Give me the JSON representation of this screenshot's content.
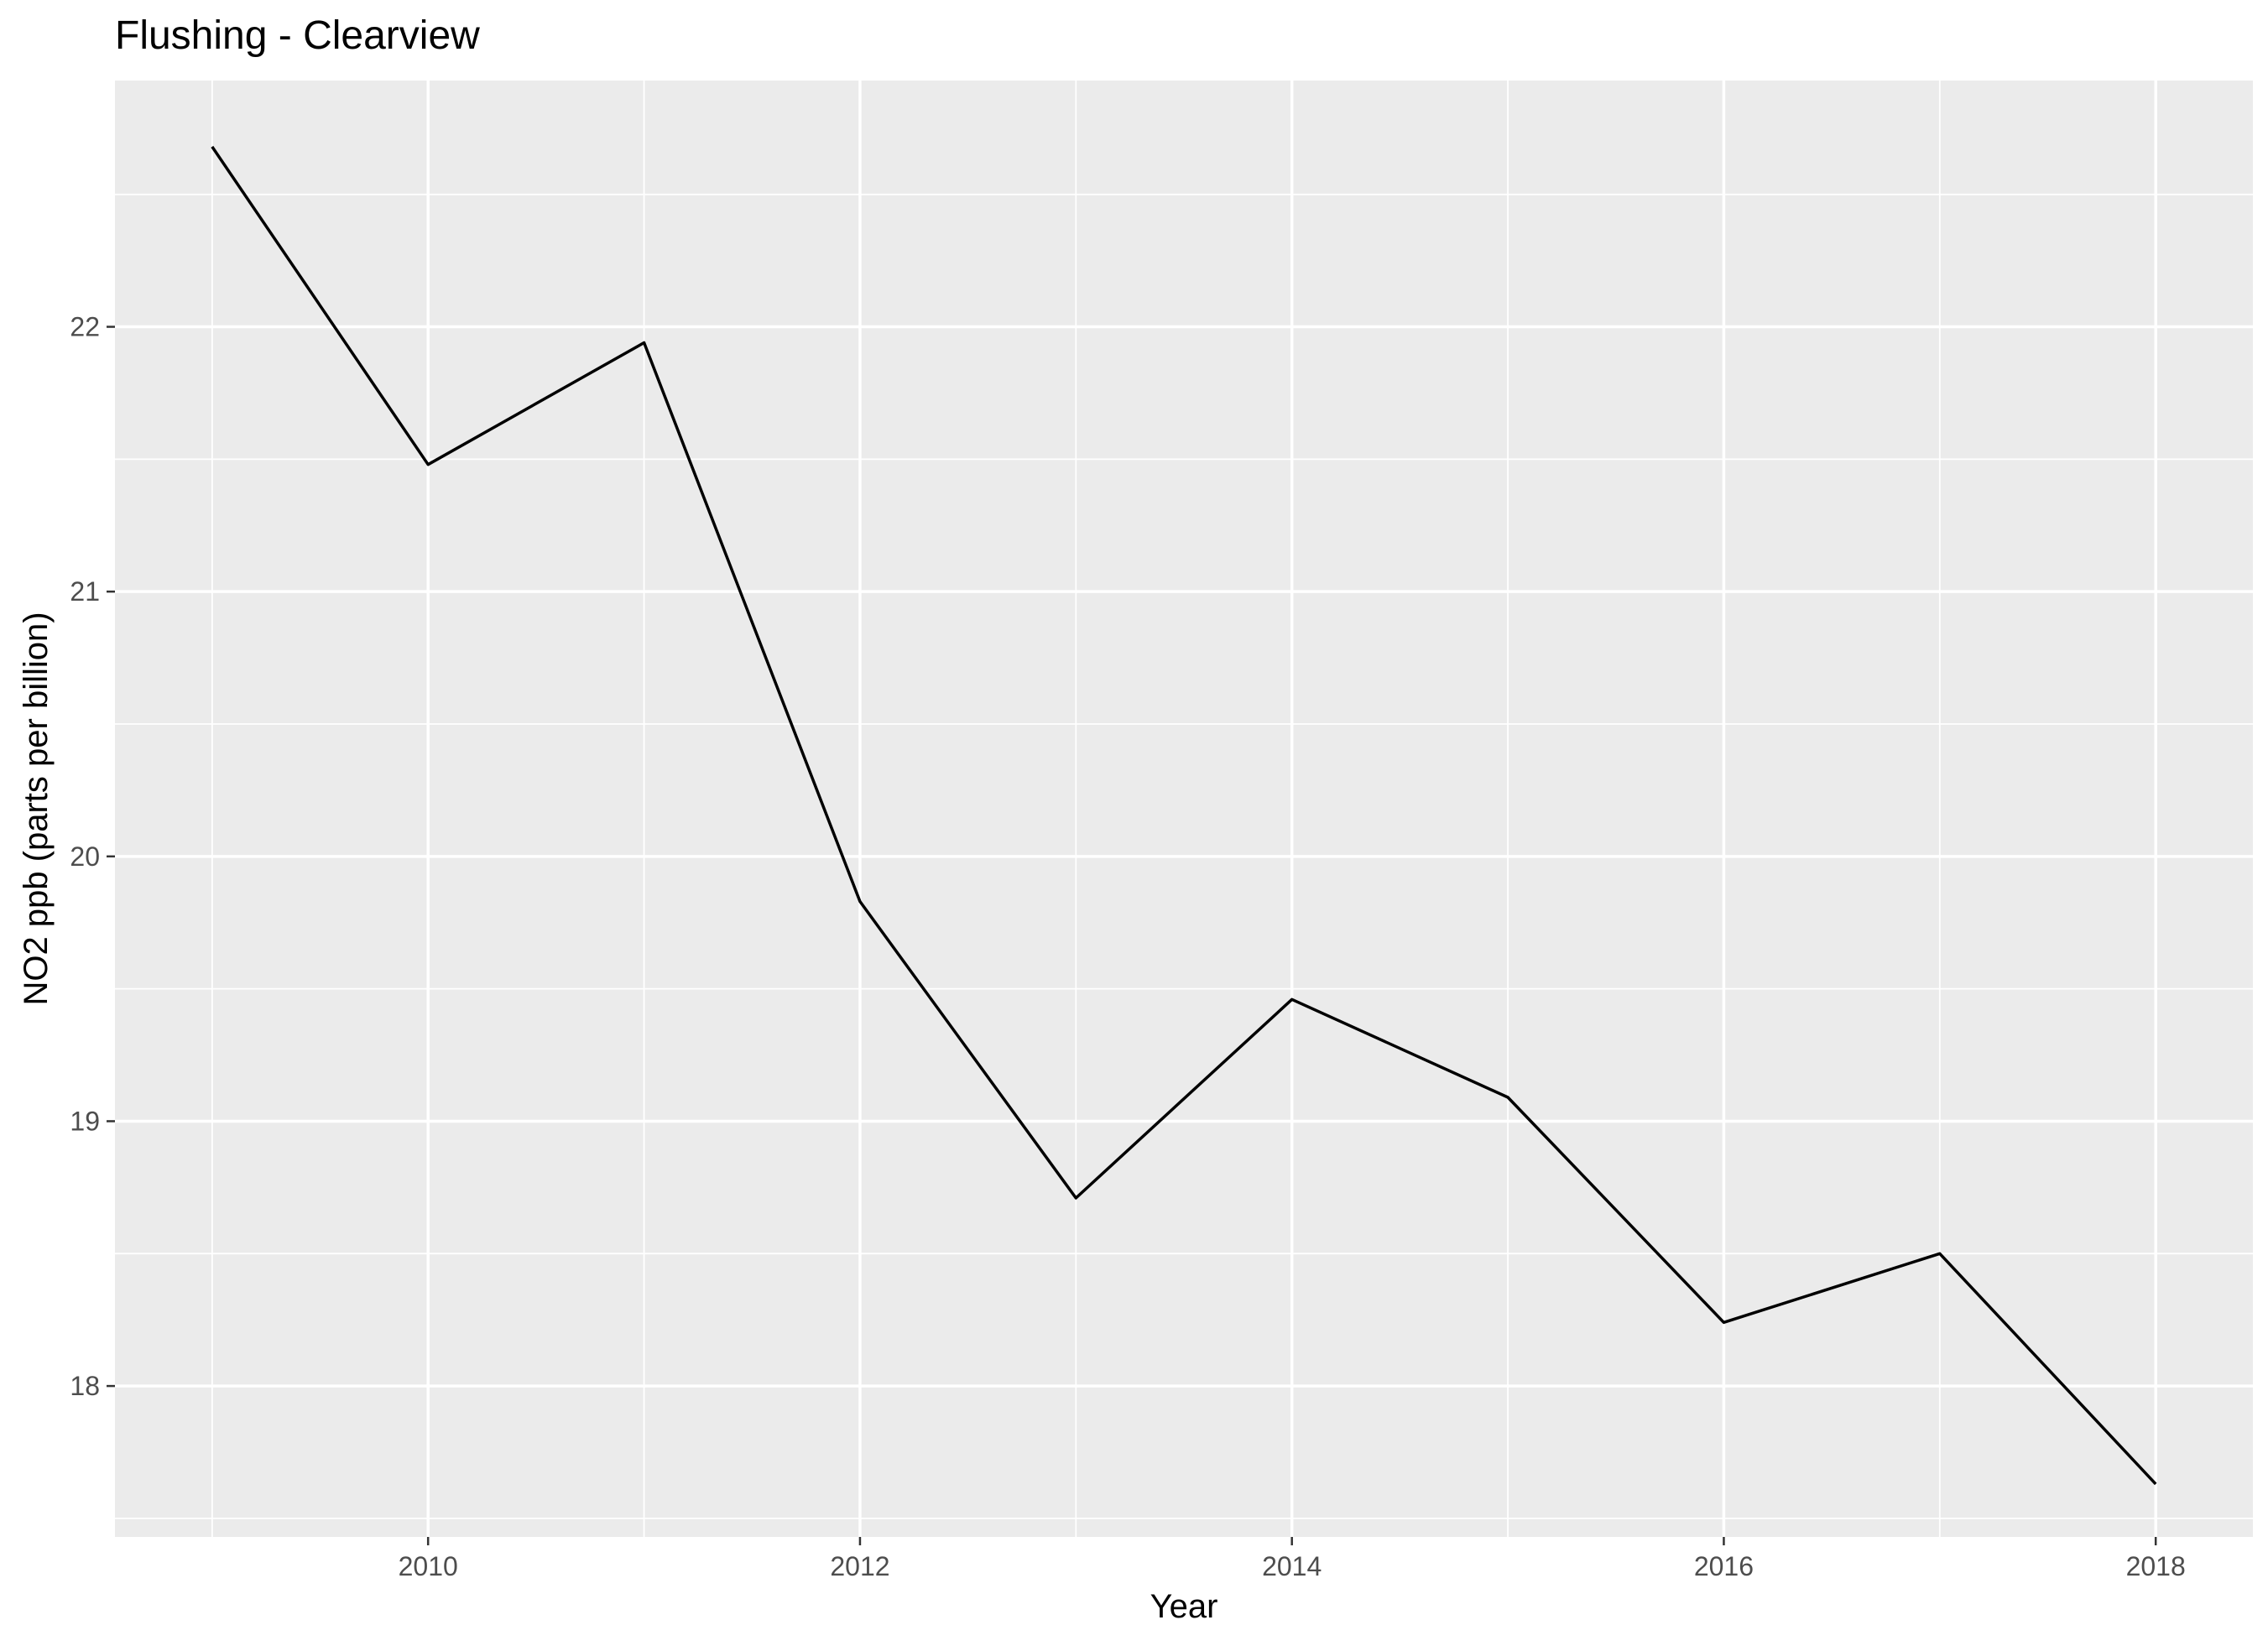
{
  "chart_data": {
    "type": "line",
    "title": "Flushing - Clearview",
    "xlabel": "Year",
    "ylabel": "NO2 ppb (parts per billion)",
    "x": [
      2009,
      2010,
      2011,
      2012,
      2013,
      2014,
      2015,
      2016,
      2017,
      2018
    ],
    "series": [
      {
        "values": [
          22.68,
          21.48,
          21.94,
          19.83,
          18.71,
          19.46,
          19.09,
          18.24,
          18.5,
          17.63
        ],
        "color": "#000000"
      }
    ],
    "xlim": [
      2008.55,
      2018.45
    ],
    "ylim": [
      17.43,
      22.93
    ],
    "x_ticks": [
      2010,
      2012,
      2014,
      2016,
      2018
    ],
    "x_tick_labels": [
      "2010",
      "2012",
      "2014",
      "2016",
      "2018"
    ],
    "x_minor_ticks": [
      2009,
      2011,
      2013,
      2015,
      2017
    ],
    "y_ticks": [
      18,
      19,
      20,
      21,
      22
    ],
    "y_tick_labels": [
      "18",
      "19",
      "20",
      "21",
      "22"
    ],
    "y_minor_ticks": [
      17.5,
      18.5,
      19.5,
      20.5,
      21.5,
      22.5
    ],
    "grid": true,
    "legend": "none",
    "panel_color": "#ebebeb"
  }
}
